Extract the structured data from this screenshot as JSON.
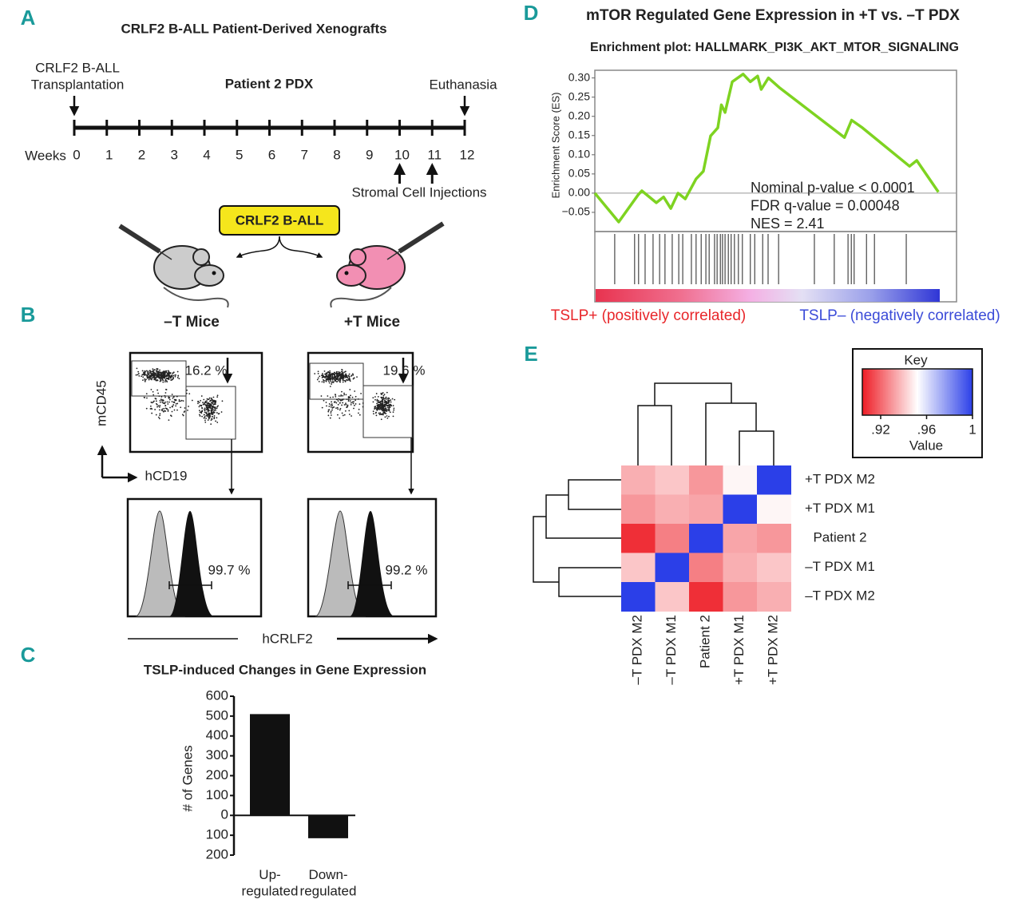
{
  "panel_a": {
    "label": "A",
    "title": "CRLF2 B-ALL Patient-Derived Xenografts",
    "start_label": [
      "CRLF2 B-ALL",
      "Transplantation"
    ],
    "timeline_title": "Patient 2 PDX",
    "end_label": "Euthanasia",
    "axis_label": "Weeks",
    "weeks": [
      0,
      1,
      2,
      3,
      4,
      5,
      6,
      7,
      8,
      9,
      10,
      11,
      12
    ],
    "injection_weeks": [
      10,
      11
    ],
    "injection_label": "Stromal Cell Injections",
    "cell_box": "CRLF2 B-ALL",
    "left_group": "–T Mice",
    "right_group": "+T Mice"
  },
  "panel_b": {
    "label": "B",
    "left": {
      "gate_percent": "16.2 %",
      "crlf2_percent": "99.7 %"
    },
    "right": {
      "gate_percent": "19.6 %",
      "crlf2_percent": "99.2 %"
    },
    "y_label": "mCD45",
    "x_label": "hCD19",
    "hist_label": "hCRLF2"
  },
  "chart_data": [
    {
      "type": "bar",
      "panel_label": "C",
      "title": "TSLP-induced Changes in Gene Expression",
      "y_label": "# of Genes",
      "categories": [
        "Up-\nregulated",
        "Down-\nregulated"
      ],
      "values": [
        510,
        -115
      ],
      "color": "#111111",
      "ylim": [
        -200,
        600
      ],
      "yticks": [
        {
          "value": -200,
          "label": "200"
        },
        {
          "value": -100,
          "label": "100"
        },
        0,
        100,
        200,
        300,
        400,
        500,
        600
      ]
    },
    {
      "type": "line",
      "panel_label": "D",
      "title": "mTOR Regulated Gene Expression in +T vs. –T PDX",
      "subtitle": "Enrichment plot: HALLMARK_PI3K_AKT_MTOR_SIGNALING",
      "y_label": "Enrichment Score (ES)",
      "x": [
        0,
        6.6,
        12,
        13,
        17,
        19,
        21,
        23,
        25,
        28,
        30,
        32,
        34,
        35,
        36,
        38,
        41,
        43,
        45,
        46,
        48,
        51,
        69,
        71,
        74,
        87,
        89,
        95
      ],
      "values": [
        0,
        -0.075,
        -0.004,
        0.006,
        -0.025,
        -0.01,
        -0.04,
        0,
        -0.015,
        0.037,
        0.057,
        0.149,
        0.17,
        0.23,
        0.21,
        0.29,
        0.31,
        0.29,
        0.305,
        0.27,
        0.3,
        0.275,
        0.145,
        0.19,
        0.17,
        0.07,
        0.085,
        0.003
      ],
      "hits": [
        5.5,
        11,
        12.1,
        13.9,
        16.1,
        17.9,
        19.4,
        21.4,
        23.2,
        24.3,
        26.7,
        28,
        29.4,
        30.7,
        31.6,
        33.1,
        33.8,
        34.7,
        35.3,
        36,
        36.9,
        37.7,
        38.6,
        39.7,
        40.8,
        43,
        44.2,
        46.4,
        47.9,
        50.8,
        60.7,
        66.2,
        70,
        70.9,
        71.7,
        75.1,
        77.3,
        86.1
      ],
      "color": "#7ed321",
      "xlim": [
        0,
        100
      ],
      "ylim": [
        -0.1,
        0.32
      ],
      "yticks": [
        {
          "value": -0.05,
          "label": "−0.05"
        },
        {
          "value": 0,
          "label": "0.00"
        },
        {
          "value": 0.05,
          "label": "0.05"
        },
        {
          "value": 0.1,
          "label": "0.10"
        },
        {
          "value": 0.15,
          "label": "0.15"
        },
        {
          "value": 0.2,
          "label": "0.20"
        },
        {
          "value": 0.25,
          "label": "0.25"
        },
        {
          "value": 0.3,
          "label": "0.30"
        }
      ],
      "annotations": [
        "Nominal p-value < 0.0001",
        "FDR q-value = 0.00048",
        "NES = 2.41"
      ],
      "positive_label": {
        "text": "TSLP+ (positively correlated)",
        "color": "#e8262a"
      },
      "negative_label": {
        "text": "TSLP– (negatively correlated)",
        "color": "#3b4bd8"
      }
    },
    {
      "type": "heatmap",
      "panel_label": "E",
      "rows": [
        "+T PDX M2",
        "+T PDX M1",
        "Patient 2",
        "–T PDX M1",
        "–T PDX M2"
      ],
      "columns": [
        "–T PDX M2",
        "–T PDX M1",
        "Patient 2",
        "+T PDX M1",
        "+T PDX M2"
      ],
      "values": [
        [
          0.935,
          0.94,
          0.93,
          0.95,
          1
        ],
        [
          0.93,
          0.935,
          0.933,
          1,
          0.95
        ],
        [
          0.908,
          0.925,
          1,
          0.933,
          0.93
        ],
        [
          0.94,
          1,
          0.925,
          0.935,
          0.94
        ],
        [
          1,
          0.94,
          0.908,
          0.93,
          0.935
        ]
      ],
      "colorbar": {
        "title": "Key",
        "label": "Value",
        "lim": [
          0.904,
          1
        ],
        "ticks": [
          {
            "value": 0.92,
            "label": ".92"
          },
          {
            "value": 0.96,
            "label": ".96"
          },
          1
        ],
        "colors": [
          "#ee1c25",
          "#ffffff",
          "#2b3fe8"
        ]
      }
    }
  ]
}
